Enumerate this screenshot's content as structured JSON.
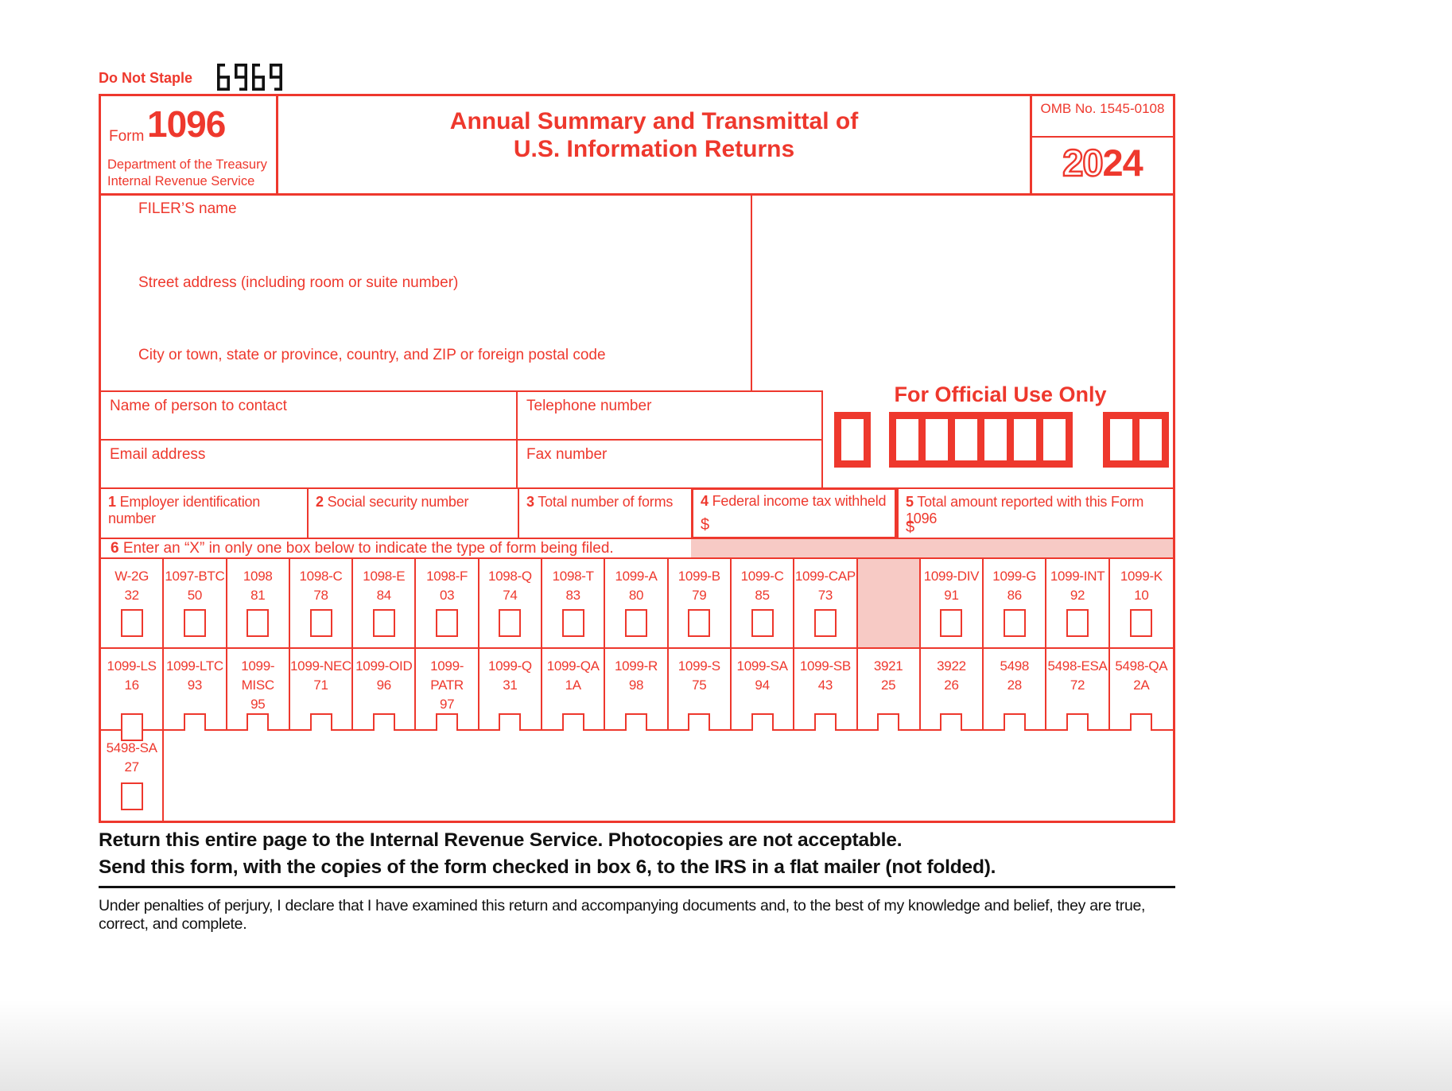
{
  "page": {
    "do_not_staple": "Do Not Staple",
    "corner_code": "6969",
    "colors": {
      "red": "#ee382d",
      "pink": "#f7cac5",
      "black": "#111111"
    }
  },
  "header": {
    "form_word": "Form",
    "form_number": "1096",
    "agency_line1": "Department of the Treasury",
    "agency_line2": "Internal Revenue Service",
    "title_line1": "Annual Summary and Transmittal of",
    "title_line2": "U.S. Information Returns",
    "omb": "OMB No. 1545-0108",
    "year_outline": "20",
    "year_solid": "24"
  },
  "filer": {
    "name_label": "FILER’S name",
    "street_label": "Street address (including room or suite number)",
    "city_label": "City or town, state or province, country, and ZIP or foreign postal code"
  },
  "contact": {
    "name_label": "Name of person to contact",
    "phone_label": "Telephone number",
    "email_label": "Email address",
    "fax_label": "Fax number"
  },
  "official_use": {
    "title": "For Official Use Only",
    "groups": [
      1,
      6,
      2
    ]
  },
  "boxes": [
    {
      "num": "1",
      "label": "Employer identification number",
      "dollar": ""
    },
    {
      "num": "2",
      "label": "Social security number",
      "dollar": ""
    },
    {
      "num": "3",
      "label": "Total number of forms",
      "dollar": ""
    },
    {
      "num": "4",
      "label": "Federal income tax withheld",
      "dollar": "$"
    },
    {
      "num": "5",
      "label": "Total amount reported with this Form 1096",
      "dollar": "$"
    }
  ],
  "box6": {
    "num": "6",
    "label": "Enter an “X” in only one box below to indicate the type of form being filed."
  },
  "grid": {
    "rows": [
      [
        {
          "name": "W-2G",
          "code": "32"
        },
        {
          "name": "1097-BTC",
          "code": "50"
        },
        {
          "name": "1098",
          "code": "81"
        },
        {
          "name": "1098-C",
          "code": "78"
        },
        {
          "name": "1098-E",
          "code": "84"
        },
        {
          "name": "1098-F",
          "code": "03"
        },
        {
          "name": "1098-Q",
          "code": "74"
        },
        {
          "name": "1098-T",
          "code": "83"
        },
        {
          "name": "1099-A",
          "code": "80"
        },
        {
          "name": "1099-B",
          "code": "79"
        },
        {
          "name": "1099-C",
          "code": "85"
        },
        {
          "name": "1099-CAP",
          "code": "73"
        },
        {
          "shaded": true
        },
        {
          "name": "1099-DIV",
          "code": "91"
        },
        {
          "name": "1099-G",
          "code": "86"
        },
        {
          "name": "1099-INT",
          "code": "92"
        },
        {
          "name": "1099-K",
          "code": "10"
        }
      ],
      [
        {
          "name": "1099-LS",
          "code": "16"
        },
        {
          "name": "1099-LTC",
          "code": "93"
        },
        {
          "name": "1099-MISC",
          "code": "95"
        },
        {
          "name": "1099-NEC",
          "code": "71"
        },
        {
          "name": "1099-OID",
          "code": "96"
        },
        {
          "name": "1099-PATR",
          "code": "97"
        },
        {
          "name": "1099-Q",
          "code": "31"
        },
        {
          "name": "1099-QA",
          "code": "1A"
        },
        {
          "name": "1099-R",
          "code": "98"
        },
        {
          "name": "1099-S",
          "code": "75"
        },
        {
          "name": "1099-SA",
          "code": "94"
        },
        {
          "name": "1099-SB",
          "code": "43"
        },
        {
          "name": "3921",
          "code": "25"
        },
        {
          "name": "3922",
          "code": "26"
        },
        {
          "name": "5498",
          "code": "28"
        },
        {
          "name": "5498-ESA",
          "code": "72"
        },
        {
          "name": "5498-QA",
          "code": "2A"
        }
      ],
      [
        {
          "name": "5498-SA",
          "code": "27"
        }
      ]
    ]
  },
  "footer": {
    "bold_line1": "Return this entire page to the Internal Revenue Service. Photocopies are not acceptable.",
    "bold_line2": "Send this form, with the copies of the form checked in box 6, to the IRS in a flat mailer (not folded).",
    "perjury": "Under penalties of perjury, I declare that I have examined this return and accompanying documents and, to the best of my knowledge and belief, they are true, correct, and complete."
  }
}
